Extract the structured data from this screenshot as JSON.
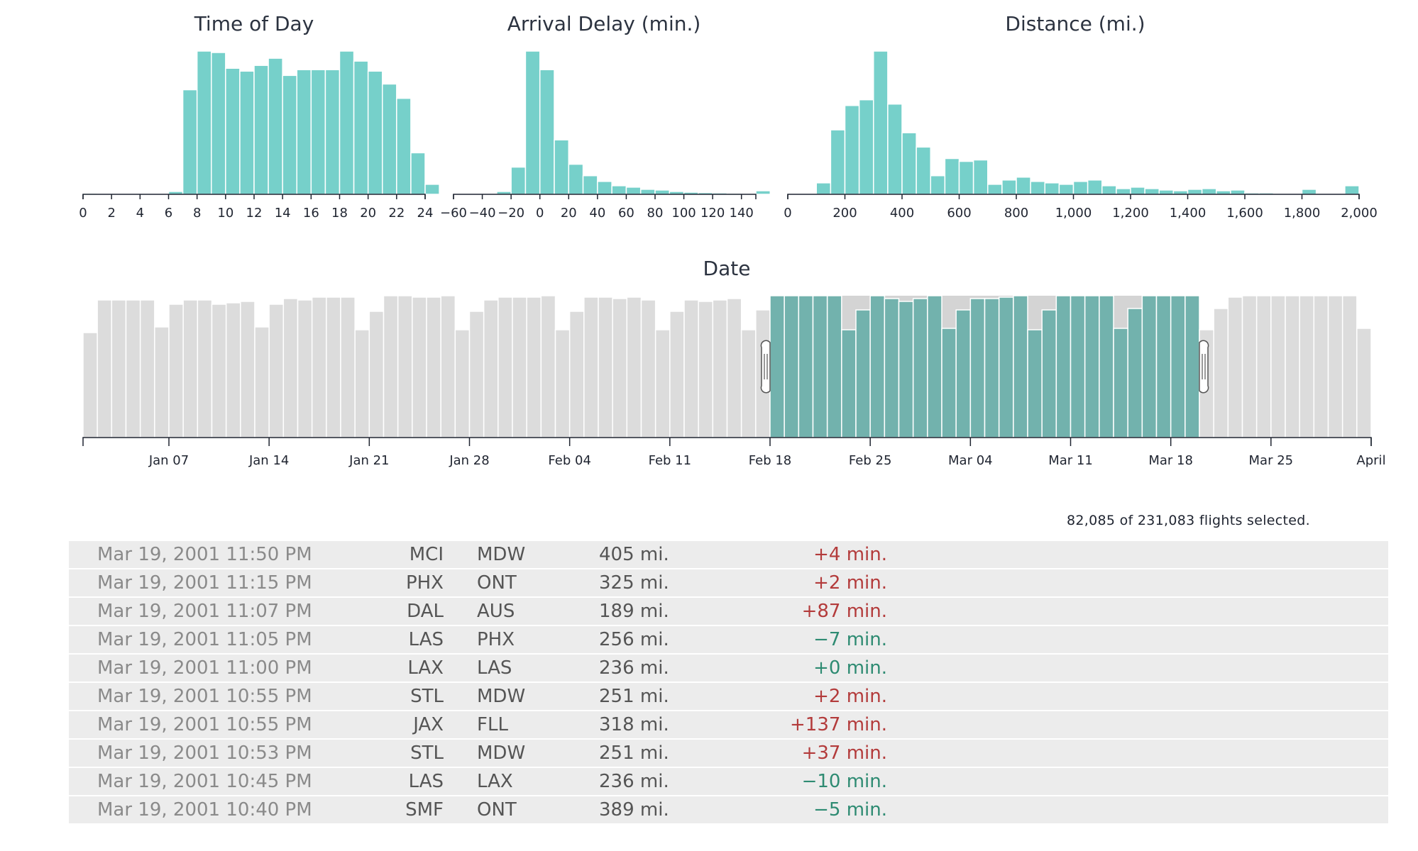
{
  "chart_data": [
    {
      "type": "bar",
      "title": "Time of Day",
      "x_ticks": [
        "0",
        "2",
        "4",
        "6",
        "8",
        "10",
        "12",
        "14",
        "16",
        "18",
        "20",
        "22",
        "24"
      ],
      "x_domain": [
        0,
        24
      ],
      "bin_width": 1,
      "values": [
        0.8,
        0.4,
        0.4,
        0.4,
        0.4,
        0.4,
        2,
        73,
        100,
        99,
        88,
        86,
        90,
        95,
        83,
        87,
        87,
        87,
        100,
        93,
        86,
        77,
        67,
        29,
        7
      ],
      "ylim": [
        0,
        100
      ]
    },
    {
      "type": "bar",
      "title": "Arrival Delay (min.)",
      "x_ticks": [
        "−60",
        "−40",
        "−20",
        "0",
        "20",
        "40",
        "60",
        "80",
        "100",
        "120",
        "140"
      ],
      "x_domain": [
        -60,
        150
      ],
      "bin_width": 10,
      "values": [
        0.4,
        0.4,
        0.4,
        2,
        19,
        100,
        87,
        38,
        21,
        13,
        9,
        6,
        5,
        3.5,
        3,
        2,
        1.5,
        1.2,
        1,
        0.8,
        0.5,
        2.5
      ],
      "ylim": [
        0,
        100
      ]
    },
    {
      "type": "bar",
      "title": "Distance (mi.)",
      "x_ticks": [
        "0",
        "200",
        "400",
        "600",
        "800",
        "1,000",
        "1,200",
        "1,400",
        "1,600",
        "1,800",
        "2,000"
      ],
      "x_domain": [
        0,
        2000
      ],
      "bin_width": 50,
      "values": [
        0.6,
        0.6,
        8,
        45,
        62,
        66,
        100,
        63,
        43,
        33,
        13,
        25,
        23,
        24,
        7,
        10,
        12,
        9,
        8,
        7,
        9,
        10,
        6,
        4,
        5,
        4,
        3,
        2.5,
        3.5,
        4,
        2.5,
        3,
        1,
        1,
        0.5,
        0.5,
        3.5,
        0.5,
        0.3,
        6
      ],
      "ylim": [
        0,
        100
      ]
    },
    {
      "type": "bar",
      "title": "Date",
      "x_ticks": [
        "Jan 07",
        "Jan 14",
        "Jan 21",
        "Jan 28",
        "Feb 04",
        "Feb 11",
        "Feb 18",
        "Feb 25",
        "Mar 04",
        "Mar 11",
        "Mar 18",
        "Mar 25",
        "April"
      ],
      "x_start": "2001-01-01",
      "x_end": "2001-04-01",
      "values": [
        74,
        97,
        97,
        97,
        97,
        78,
        94,
        97,
        97,
        94,
        95,
        96,
        78,
        94,
        98,
        97,
        99,
        99,
        99,
        76,
        89,
        100,
        100,
        99,
        99,
        100,
        76,
        89,
        97,
        99,
        99,
        99,
        100,
        76,
        89,
        99,
        99,
        98,
        99,
        97,
        76,
        89,
        97,
        96,
        97,
        98,
        76,
        90,
        100,
        100,
        100,
        100,
        100,
        76,
        90,
        100,
        98,
        96,
        98,
        100,
        77,
        90,
        98,
        98,
        99,
        100,
        76,
        90,
        100,
        100,
        100,
        100,
        77,
        91,
        100,
        100,
        100,
        100,
        76,
        91,
        99,
        100,
        100,
        100,
        100,
        100,
        100,
        100,
        100,
        77
      ],
      "selection": [
        "2001-02-18",
        "2001-03-20"
      ],
      "ylim": [
        0,
        100
      ]
    }
  ],
  "summary": {
    "selected": "82,085",
    "total": "231,083",
    "text": "82,085 of 231,083 flights selected."
  },
  "flights": [
    {
      "date": "Mar 19, 2001 11:50 PM",
      "origin": "MCI",
      "destination": "MDW",
      "distance": "405 mi.",
      "delay": "+4 min.",
      "status": "late"
    },
    {
      "date": "Mar 19, 2001 11:15 PM",
      "origin": "PHX",
      "destination": "ONT",
      "distance": "325 mi.",
      "delay": "+2 min.",
      "status": "late"
    },
    {
      "date": "Mar 19, 2001 11:07 PM",
      "origin": "DAL",
      "destination": "AUS",
      "distance": "189 mi.",
      "delay": "+87 min.",
      "status": "late"
    },
    {
      "date": "Mar 19, 2001 11:05 PM",
      "origin": "LAS",
      "destination": "PHX",
      "distance": "256 mi.",
      "delay": "−7 min.",
      "status": "early"
    },
    {
      "date": "Mar 19, 2001 11:00 PM",
      "origin": "LAX",
      "destination": "LAS",
      "distance": "236 mi.",
      "delay": "+0 min.",
      "status": "early"
    },
    {
      "date": "Mar 19, 2001 10:55 PM",
      "origin": "STL",
      "destination": "MDW",
      "distance": "251 mi.",
      "delay": "+2 min.",
      "status": "late"
    },
    {
      "date": "Mar 19, 2001 10:55 PM",
      "origin": "JAX",
      "destination": "FLL",
      "distance": "318 mi.",
      "delay": "+137 min.",
      "status": "late"
    },
    {
      "date": "Mar 19, 2001 10:53 PM",
      "origin": "STL",
      "destination": "MDW",
      "distance": "251 mi.",
      "delay": "+37 min.",
      "status": "late"
    },
    {
      "date": "Mar 19, 2001 10:45 PM",
      "origin": "LAS",
      "destination": "LAX",
      "distance": "236 mi.",
      "delay": "−10 min.",
      "status": "early"
    },
    {
      "date": "Mar 19, 2001 10:40 PM",
      "origin": "SMF",
      "destination": "ONT",
      "distance": "389 mi.",
      "delay": "−5 min.",
      "status": "early"
    }
  ],
  "colors": {
    "bar": "#76d0ca",
    "selected_bar": "#72b2ad",
    "background_bar": "#dcdcdc",
    "late": "#b33b3b",
    "early": "#2e8b72"
  }
}
